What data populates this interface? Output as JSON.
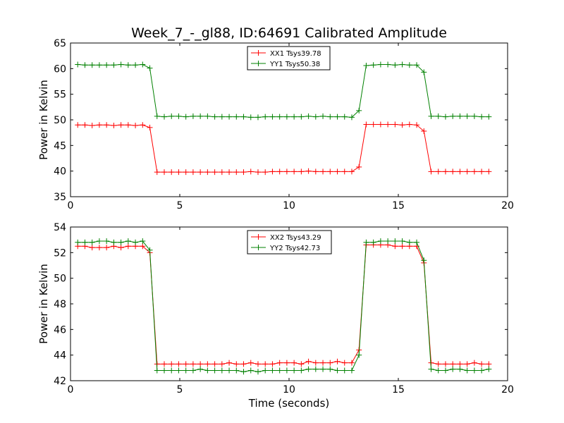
{
  "title": "Week_7_-_gl88, ID:64691 Calibrated Amplitude",
  "xlabel": "Time (seconds)",
  "chart_data": [
    {
      "type": "line",
      "title": "Week_7_-_gl88, ID:64691 Calibrated Amplitude",
      "xlabel": "",
      "ylabel": "Power in Kelvin",
      "xlim": [
        0,
        20
      ],
      "ylim": [
        35,
        65
      ],
      "xticks": [
        0,
        5,
        10,
        15,
        20
      ],
      "yticks": [
        35,
        40,
        45,
        50,
        55,
        60,
        65
      ],
      "legend": "top-center",
      "grid": false,
      "x": [
        0.33,
        0.66,
        0.99,
        1.32,
        1.65,
        1.98,
        2.31,
        2.64,
        2.97,
        3.3,
        3.63,
        3.96,
        4.29,
        4.62,
        4.95,
        5.28,
        5.61,
        5.94,
        6.27,
        6.6,
        6.93,
        7.26,
        7.59,
        7.92,
        8.25,
        8.58,
        8.91,
        9.24,
        9.57,
        9.9,
        10.23,
        10.56,
        10.89,
        11.22,
        11.55,
        11.88,
        12.21,
        12.54,
        12.87,
        13.2,
        13.53,
        13.86,
        14.19,
        14.52,
        14.85,
        15.18,
        15.51,
        15.84,
        16.17,
        16.5,
        16.83,
        17.16,
        17.49,
        17.82,
        18.15,
        18.48,
        18.81,
        19.14
      ],
      "series": [
        {
          "name": "XX1 Tsys39.78",
          "color": "#ff0000",
          "values": [
            49,
            49,
            48.9,
            49,
            49,
            48.9,
            49,
            49,
            48.9,
            49,
            48.5,
            39.8,
            39.8,
            39.8,
            39.8,
            39.8,
            39.8,
            39.8,
            39.8,
            39.8,
            39.8,
            39.8,
            39.8,
            39.8,
            39.9,
            39.8,
            39.8,
            39.9,
            39.9,
            39.9,
            39.9,
            39.9,
            40,
            39.9,
            39.9,
            39.9,
            39.9,
            39.9,
            39.9,
            40.8,
            49.1,
            49.1,
            49.1,
            49.1,
            49.1,
            49,
            49.1,
            49,
            47.8,
            39.9,
            39.9,
            39.9,
            39.9,
            39.9,
            39.9,
            39.9,
            39.9,
            39.9
          ]
        },
        {
          "name": "YY1 Tsys50.38",
          "color": "#008000",
          "values": [
            60.8,
            60.7,
            60.7,
            60.7,
            60.7,
            60.7,
            60.8,
            60.7,
            60.7,
            60.8,
            60.1,
            50.7,
            50.6,
            50.7,
            50.7,
            50.6,
            50.7,
            50.7,
            50.7,
            50.6,
            50.6,
            50.6,
            50.6,
            50.6,
            50.5,
            50.5,
            50.6,
            50.6,
            50.6,
            50.6,
            50.6,
            50.6,
            50.7,
            50.6,
            50.7,
            50.6,
            50.6,
            50.6,
            50.5,
            51.8,
            60.6,
            60.7,
            60.8,
            60.8,
            60.7,
            60.8,
            60.7,
            60.7,
            59.3,
            50.7,
            50.7,
            50.6,
            50.7,
            50.7,
            50.7,
            50.7,
            50.6,
            50.6
          ]
        }
      ]
    },
    {
      "type": "line",
      "title": "",
      "xlabel": "Time (seconds)",
      "ylabel": "Power in Kelvin",
      "xlim": [
        0,
        20
      ],
      "ylim": [
        42,
        54
      ],
      "xticks": [
        0,
        5,
        10,
        15,
        20
      ],
      "yticks": [
        42,
        44,
        46,
        48,
        50,
        52,
        54
      ],
      "legend": "top-center",
      "grid": false,
      "x": [
        0.33,
        0.66,
        0.99,
        1.32,
        1.65,
        1.98,
        2.31,
        2.64,
        2.97,
        3.3,
        3.63,
        3.96,
        4.29,
        4.62,
        4.95,
        5.28,
        5.61,
        5.94,
        6.27,
        6.6,
        6.93,
        7.26,
        7.59,
        7.92,
        8.25,
        8.58,
        8.91,
        9.24,
        9.57,
        9.9,
        10.23,
        10.56,
        10.89,
        11.22,
        11.55,
        11.88,
        12.21,
        12.54,
        12.87,
        13.2,
        13.53,
        13.86,
        14.19,
        14.52,
        14.85,
        15.18,
        15.51,
        15.84,
        16.17,
        16.5,
        16.83,
        17.16,
        17.49,
        17.82,
        18.15,
        18.48,
        18.81,
        19.14
      ],
      "series": [
        {
          "name": "XX2 Tsys43.29",
          "color": "#ff0000",
          "values": [
            52.5,
            52.5,
            52.4,
            52.4,
            52.4,
            52.5,
            52.4,
            52.5,
            52.5,
            52.5,
            52,
            43.3,
            43.3,
            43.3,
            43.3,
            43.3,
            43.3,
            43.3,
            43.3,
            43.3,
            43.3,
            43.4,
            43.3,
            43.3,
            43.4,
            43.3,
            43.3,
            43.3,
            43.4,
            43.4,
            43.4,
            43.3,
            43.5,
            43.4,
            43.4,
            43.4,
            43.5,
            43.4,
            43.4,
            44.4,
            52.6,
            52.6,
            52.6,
            52.6,
            52.5,
            52.5,
            52.5,
            52.5,
            51.2,
            43.4,
            43.3,
            43.3,
            43.3,
            43.3,
            43.3,
            43.4,
            43.3,
            43.3
          ]
        },
        {
          "name": "YY2 Tsys42.73",
          "color": "#008000",
          "values": [
            52.8,
            52.8,
            52.8,
            52.9,
            52.9,
            52.8,
            52.8,
            52.9,
            52.8,
            52.9,
            52.2,
            42.8,
            42.8,
            42.8,
            42.8,
            42.8,
            42.8,
            42.9,
            42.8,
            42.8,
            42.8,
            42.8,
            42.8,
            42.7,
            42.8,
            42.7,
            42.8,
            42.8,
            42.8,
            42.8,
            42.8,
            42.8,
            42.9,
            42.9,
            42.9,
            42.9,
            42.8,
            42.8,
            42.8,
            44,
            52.8,
            52.8,
            52.9,
            52.9,
            52.9,
            52.9,
            52.8,
            52.8,
            51.4,
            42.9,
            42.8,
            42.8,
            42.9,
            42.9,
            42.8,
            42.8,
            42.8,
            42.9
          ]
        }
      ]
    }
  ]
}
